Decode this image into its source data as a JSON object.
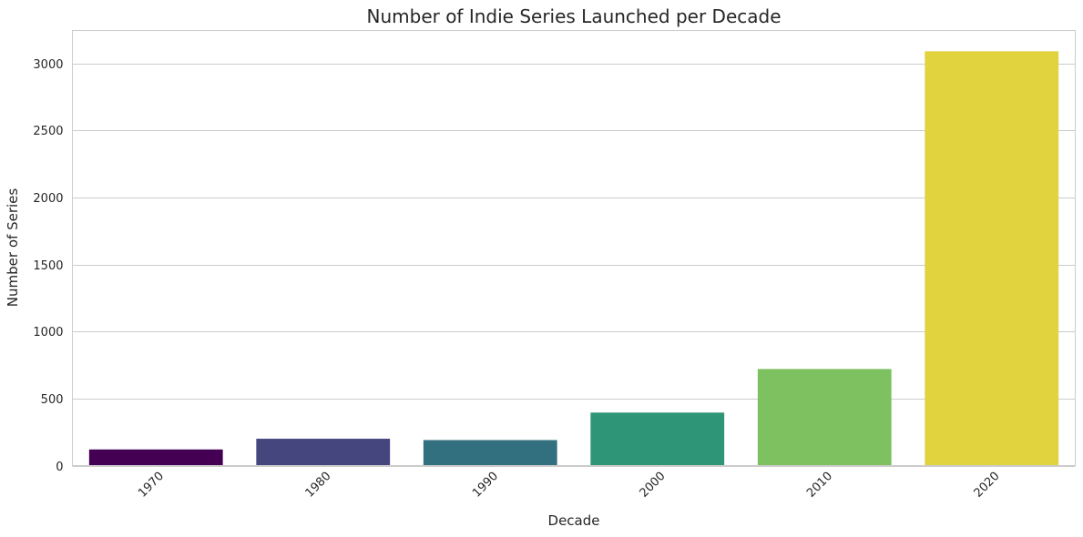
{
  "chart_data": {
    "type": "bar",
    "title": "Number of Indie Series Launched per Decade",
    "xlabel": "Decade",
    "ylabel": "Number of Series",
    "categories": [
      "1970",
      "1980",
      "1990",
      "2000",
      "2010",
      "2020"
    ],
    "values": [
      120,
      200,
      190,
      395,
      720,
      3090
    ],
    "colors": [
      "#440154",
      "#46467f",
      "#33707f",
      "#2f9577",
      "#7dc160",
      "#e1d33e"
    ],
    "yticks": [
      0,
      500,
      1000,
      1500,
      2000,
      2500,
      3000
    ],
    "ylim": [
      0,
      3245
    ],
    "grid": "horizontal",
    "legend": "none"
  }
}
